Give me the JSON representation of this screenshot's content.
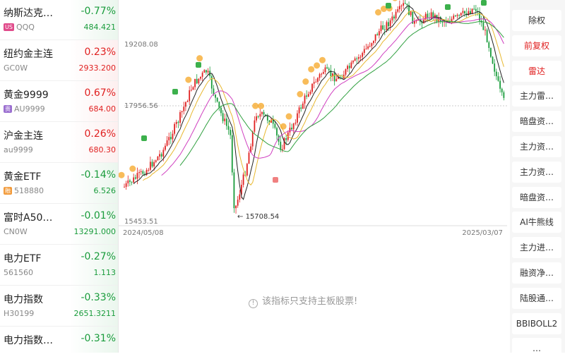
{
  "watchlist": [
    {
      "name": "纳斯达克…",
      "tag": "US",
      "tag_color": "#e04a8a",
      "code": "QQQ",
      "pct": "-0.77%",
      "price": "484.421",
      "dir": "down"
    },
    {
      "name": "纽约金主连",
      "tag": "",
      "tag_color": "",
      "code": "GC0W",
      "pct": "0.23%",
      "price": "2933.200",
      "dir": "up"
    },
    {
      "name": "黄金9999",
      "tag": "贵",
      "tag_color": "#9b6fd0",
      "code": "AU9999",
      "pct": "0.67%",
      "price": "684.00",
      "dir": "up"
    },
    {
      "name": "沪金主连",
      "tag": "",
      "tag_color": "",
      "code": "au9999",
      "pct": "0.26%",
      "price": "680.30",
      "dir": "up"
    },
    {
      "name": "黄金ETF",
      "tag": "融",
      "tag_color": "#f29a3a",
      "code": "518880",
      "pct": "-0.14%",
      "price": "6.526",
      "dir": "down"
    },
    {
      "name": "富时A50…",
      "tag": "",
      "tag_color": "",
      "code": "CN0W",
      "pct": "-0.01%",
      "price": "13291.000",
      "dir": "down"
    },
    {
      "name": "电力ETF",
      "tag": "",
      "tag_color": "",
      "code": "561560",
      "pct": "-0.27%",
      "price": "1.113",
      "dir": "down"
    },
    {
      "name": "电力指数",
      "tag": "",
      "tag_color": "",
      "code": "H30199",
      "pct": "-0.33%",
      "price": "2651.3211",
      "dir": "down"
    },
    {
      "name": "电力指数…",
      "tag": "",
      "tag_color": "",
      "code": "",
      "pct": "-0.31%",
      "price": "",
      "dir": "down"
    }
  ],
  "chart": {
    "price_high_label": "19208.08",
    "price_mid_label": "17956.56",
    "price_low_label": "15453.51",
    "min_marker": "15708.54",
    "date_start": "2024/05/08",
    "date_end": "2025/03/07",
    "colors": {
      "up": "#e02020",
      "down": "#1a9c3c",
      "buy_signal": "#f5a623"
    }
  },
  "empty_message": "该指标只支持主板股票!",
  "side_menu": [
    {
      "label": "除权",
      "color": "normal"
    },
    {
      "label": "前复权",
      "color": "red"
    },
    {
      "label": "雷达",
      "color": "red"
    },
    {
      "label": "主力雷…",
      "color": "normal"
    },
    {
      "label": "暗盘资…",
      "color": "normal"
    },
    {
      "label": "主力资…",
      "color": "normal"
    },
    {
      "label": "主力资…",
      "color": "normal"
    },
    {
      "label": "暗盘资…",
      "color": "normal"
    },
    {
      "label": "AI牛熊线",
      "color": "normal"
    },
    {
      "label": "主力进…",
      "color": "normal"
    },
    {
      "label": "融资净…",
      "color": "normal"
    },
    {
      "label": "陆股通…",
      "color": "normal"
    },
    {
      "label": "BBIBOLL2",
      "color": "normal"
    },
    {
      "label": "…",
      "color": "normal"
    }
  ]
}
